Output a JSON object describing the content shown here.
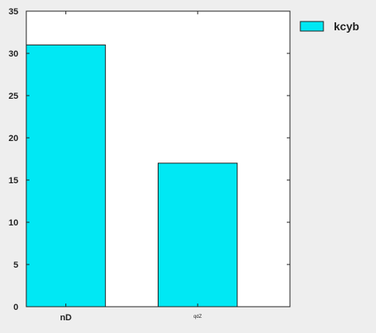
{
  "chart_data": {
    "type": "bar",
    "categories": [
      "nD",
      "qdZ"
    ],
    "series": [
      {
        "name": "kcyb",
        "values": [
          31,
          17
        ],
        "color": "#00e8f4"
      }
    ],
    "ylim": [
      0,
      35
    ],
    "yticks": [
      0,
      5,
      10,
      15,
      20,
      25,
      30,
      35
    ],
    "grid": false,
    "legend_position": "right-outside-top",
    "background": "#ffffff",
    "figure_background": "#eeeeee"
  }
}
